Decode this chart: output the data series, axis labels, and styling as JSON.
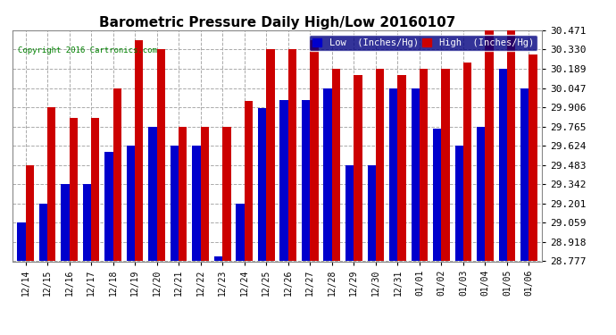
{
  "title": "Barometric Pressure Daily High/Low 20160107",
  "copyright": "Copyright 2016 Cartronics.com",
  "ylim_min": 28.777,
  "ylim_max": 30.471,
  "yticks": [
    28.777,
    28.918,
    29.059,
    29.201,
    29.342,
    29.483,
    29.624,
    29.765,
    29.906,
    30.047,
    30.189,
    30.33,
    30.471
  ],
  "categories": [
    "12/14",
    "12/15",
    "12/16",
    "12/17",
    "12/18",
    "12/19",
    "12/20",
    "12/21",
    "12/22",
    "12/23",
    "12/24",
    "12/25",
    "12/26",
    "12/27",
    "12/28",
    "12/29",
    "12/30",
    "12/31",
    "01/01",
    "01/02",
    "01/03",
    "01/04",
    "01/05",
    "01/06"
  ],
  "low_values": [
    29.059,
    29.201,
    29.342,
    29.342,
    29.58,
    29.624,
    29.765,
    29.624,
    29.624,
    28.81,
    29.201,
    29.9,
    29.96,
    29.96,
    30.047,
    29.483,
    29.483,
    30.047,
    30.047,
    29.75,
    29.624,
    29.765,
    30.189,
    30.047
  ],
  "high_values": [
    29.48,
    29.906,
    29.83,
    29.83,
    30.047,
    30.4,
    30.33,
    29.765,
    29.765,
    29.765,
    29.95,
    30.33,
    30.33,
    30.4,
    30.189,
    30.142,
    30.189,
    30.142,
    30.189,
    30.189,
    30.236,
    30.471,
    30.471,
    30.295
  ],
  "low_color": "#0000cc",
  "high_color": "#cc0000",
  "bg_color": "#ffffff",
  "grid_color": "#aaaaaa",
  "title_fontsize": 11,
  "tick_fontsize": 8,
  "legend_low_label": "Low  (Inches/Hg)",
  "legend_high_label": "High  (Inches/Hg)",
  "bar_width": 0.38
}
